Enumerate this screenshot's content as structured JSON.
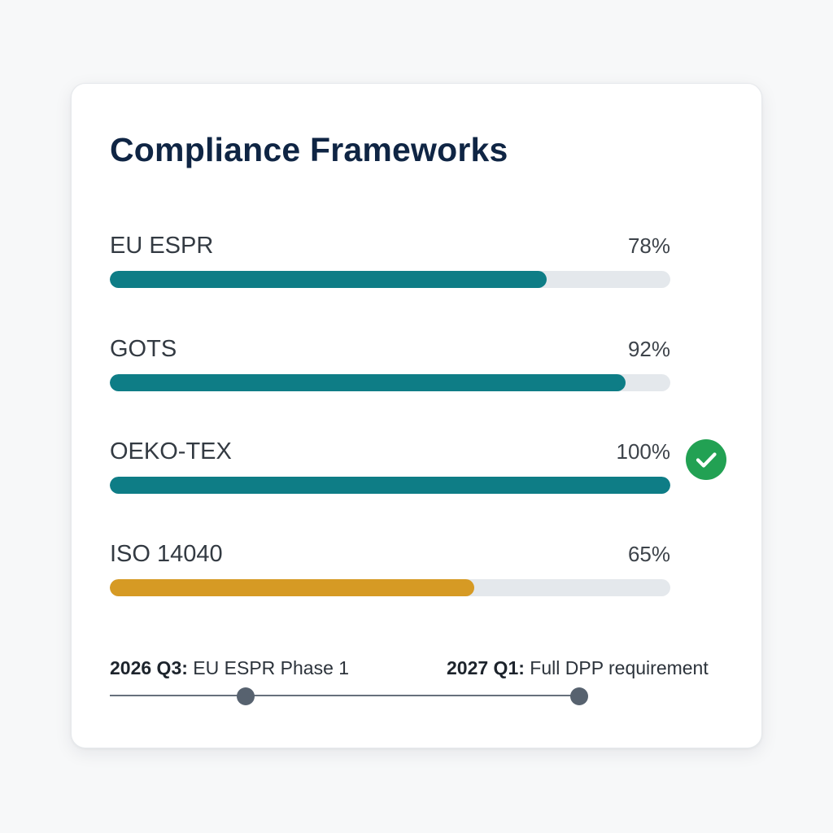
{
  "card": {
    "title": "Compliance Frameworks"
  },
  "frameworks": [
    {
      "name": "EU ESPR",
      "percent_label": "78%",
      "progress": 78,
      "color": "#0e7d86",
      "complete": false
    },
    {
      "name": "GOTS",
      "percent_label": "92%",
      "progress": 92,
      "color": "#0e7d86",
      "complete": false
    },
    {
      "name": "OEKO-TEX",
      "percent_label": "100%",
      "progress": 100,
      "color": "#0e7d86",
      "complete": true
    },
    {
      "name": "ISO 14040",
      "percent_label": "65%",
      "progress": 65,
      "color": "#d69a24",
      "complete": false
    }
  ],
  "timeline": {
    "milestones": [
      {
        "date": "2026 Q3:",
        "label": "EU ESPR Phase 1"
      },
      {
        "date": "2027 Q1:",
        "label": "Full DPP requirement"
      }
    ]
  },
  "icons": {
    "complete": "check-circle-icon"
  },
  "colors": {
    "title": "#0f2544",
    "track": "#e4e8ec",
    "check": "#22a153",
    "timeline": "#57626f"
  }
}
